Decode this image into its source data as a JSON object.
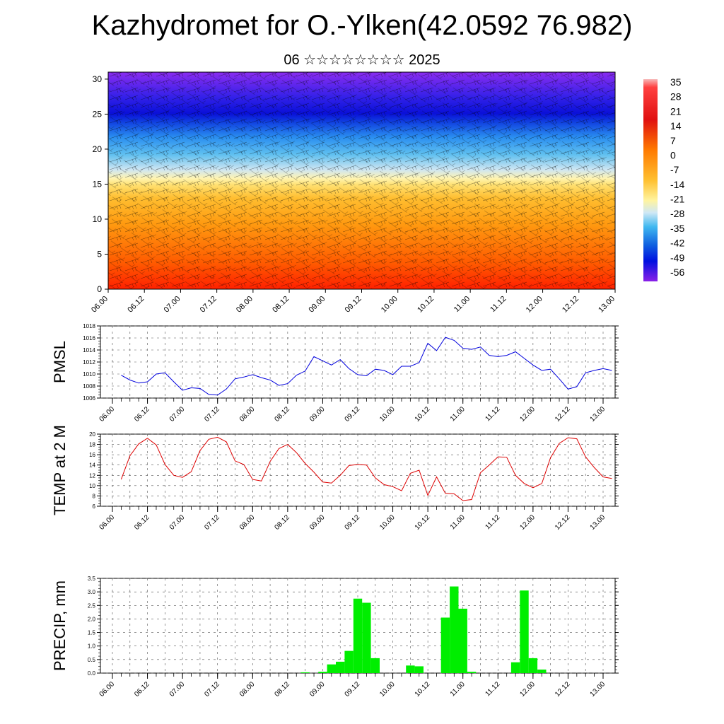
{
  "page": {
    "title": "Kazhydromet for O.-Ylken(42.0592 76.982)",
    "subtitle": "06 ☆☆☆☆☆☆☆☆ 2025"
  },
  "chart_data": [
    {
      "type": "heatmap",
      "title": "Kazhydromet for O.-Ylken(42.0592 76.982)",
      "x_ticks": [
        "06.00",
        "06.12",
        "07.00",
        "07.12",
        "08.00",
        "08.12",
        "09.00",
        "09.12",
        "10.00",
        "10.12",
        "11.00",
        "11.12",
        "12.00",
        "12.12",
        "13.00"
      ],
      "y_ticks": [
        "0",
        "5",
        "10",
        "15",
        "20",
        "25",
        "30"
      ],
      "ylim": [
        0,
        31
      ],
      "colorbar_labels": [
        "35",
        "28",
        "21",
        "14",
        "7",
        "0",
        "-7",
        "-14",
        "-21",
        "-28",
        "-35",
        "-42",
        "-49",
        "-56"
      ],
      "colorbar_range": [
        -60,
        38
      ],
      "freezing_level_approx": 15.5,
      "wind_barbs": true
    },
    {
      "type": "line",
      "ylabel": "PMSL",
      "ylim": [
        1006,
        1018
      ],
      "y_ticks": [
        "1006",
        "1008",
        "1010",
        "1012",
        "1014",
        "1016",
        "1018"
      ],
      "x_ticks": [
        "06.00",
        "06.12",
        "07.00",
        "07.12",
        "08.00",
        "08.12",
        "09.00",
        "09.12",
        "10.00",
        "10.12",
        "11.00",
        "11.12",
        "12.00",
        "12.12",
        "13.00"
      ],
      "color": "#0000dd",
      "series": [
        {
          "values": [
            1009.8,
            1009.0,
            1008.5,
            1008.7,
            1010.0,
            1010.2,
            1008.7,
            1007.3,
            1007.7,
            1007.6,
            1006.6,
            1006.5,
            1007.5,
            1009.2,
            1009.5,
            1009.9,
            1009.4,
            1009.0,
            1008.1,
            1008.4,
            1009.8,
            1010.5,
            1012.9,
            1012.2,
            1011.5,
            1012.4,
            1010.9,
            1009.9,
            1009.7,
            1010.8,
            1010.6,
            1009.9,
            1011.3,
            1011.3,
            1011.9,
            1015.1,
            1013.9,
            1016.1,
            1015.6,
            1014.3,
            1014.1,
            1014.5,
            1013.1,
            1012.9,
            1013.1,
            1013.7,
            1012.6,
            1011.5,
            1010.6,
            1010.8,
            1009.2,
            1007.5,
            1007.9,
            1010.2,
            1010.6,
            1010.9,
            1010.6
          ]
        }
      ],
      "x_start_hours": 3,
      "x_step_hours": 3
    },
    {
      "type": "line",
      "ylabel": "TEMP at 2 M",
      "ylim": [
        6,
        20
      ],
      "y_ticks": [
        "6",
        "8",
        "10",
        "12",
        "14",
        "16",
        "18",
        "20"
      ],
      "x_ticks": [
        "06.00",
        "06.12",
        "07.00",
        "07.12",
        "08.00",
        "08.12",
        "09.00",
        "09.12",
        "10.00",
        "10.12",
        "11.00",
        "11.12",
        "12.00",
        "12.12",
        "13.00"
      ],
      "color": "#dd0000",
      "series": [
        {
          "values": [
            11.2,
            15.8,
            18.1,
            19.2,
            17.9,
            14.1,
            12.0,
            11.6,
            12.7,
            16.8,
            19.0,
            19.4,
            18.5,
            14.8,
            14.1,
            11.2,
            10.9,
            14.7,
            17.2,
            18.0,
            16.4,
            14.3,
            12.6,
            10.7,
            10.5,
            12.0,
            13.9,
            14.1,
            14.0,
            11.5,
            10.2,
            9.8,
            9.0,
            12.4,
            13.0,
            8.1,
            11.7,
            8.5,
            8.4,
            7.1,
            7.3,
            12.5,
            14.0,
            15.6,
            15.5,
            12.0,
            10.4,
            9.6,
            10.4,
            15.4,
            18.2,
            19.3,
            19.1,
            15.6,
            13.5,
            11.7,
            11.4
          ]
        }
      ],
      "x_start_hours": 3,
      "x_step_hours": 3
    },
    {
      "type": "bar",
      "ylabel": "PRECIP, mm",
      "ylim": [
        0,
        3.5
      ],
      "y_ticks": [
        "0.0",
        "0.5",
        "1.0",
        "1.5",
        "2.0",
        "2.5",
        "3.0",
        "3.5"
      ],
      "x_ticks": [
        "06.00",
        "06.12",
        "07.00",
        "07.12",
        "08.00",
        "08.12",
        "09.00",
        "09.12",
        "10.00",
        "10.12",
        "11.00",
        "11.12",
        "12.00",
        "12.12",
        "13.00"
      ],
      "color": "#00ee00",
      "series": [
        {
          "values": [
            0,
            0,
            0,
            0,
            0,
            0,
            0,
            0,
            0,
            0,
            0,
            0,
            0,
            0,
            0,
            0,
            0,
            0,
            0,
            0,
            0,
            0.03,
            0,
            0.05,
            0.32,
            0.42,
            0.82,
            2.75,
            2.6,
            0.55,
            0,
            0,
            0,
            0.28,
            0.25,
            0,
            0,
            2.05,
            3.2,
            2.38,
            0.05,
            0,
            0,
            0,
            0,
            0.4,
            3.05,
            0.55,
            0.13,
            0,
            0,
            0,
            0,
            0,
            0,
            0,
            0
          ]
        }
      ],
      "x_start_hours": 3,
      "x_step_hours": 3
    }
  ]
}
